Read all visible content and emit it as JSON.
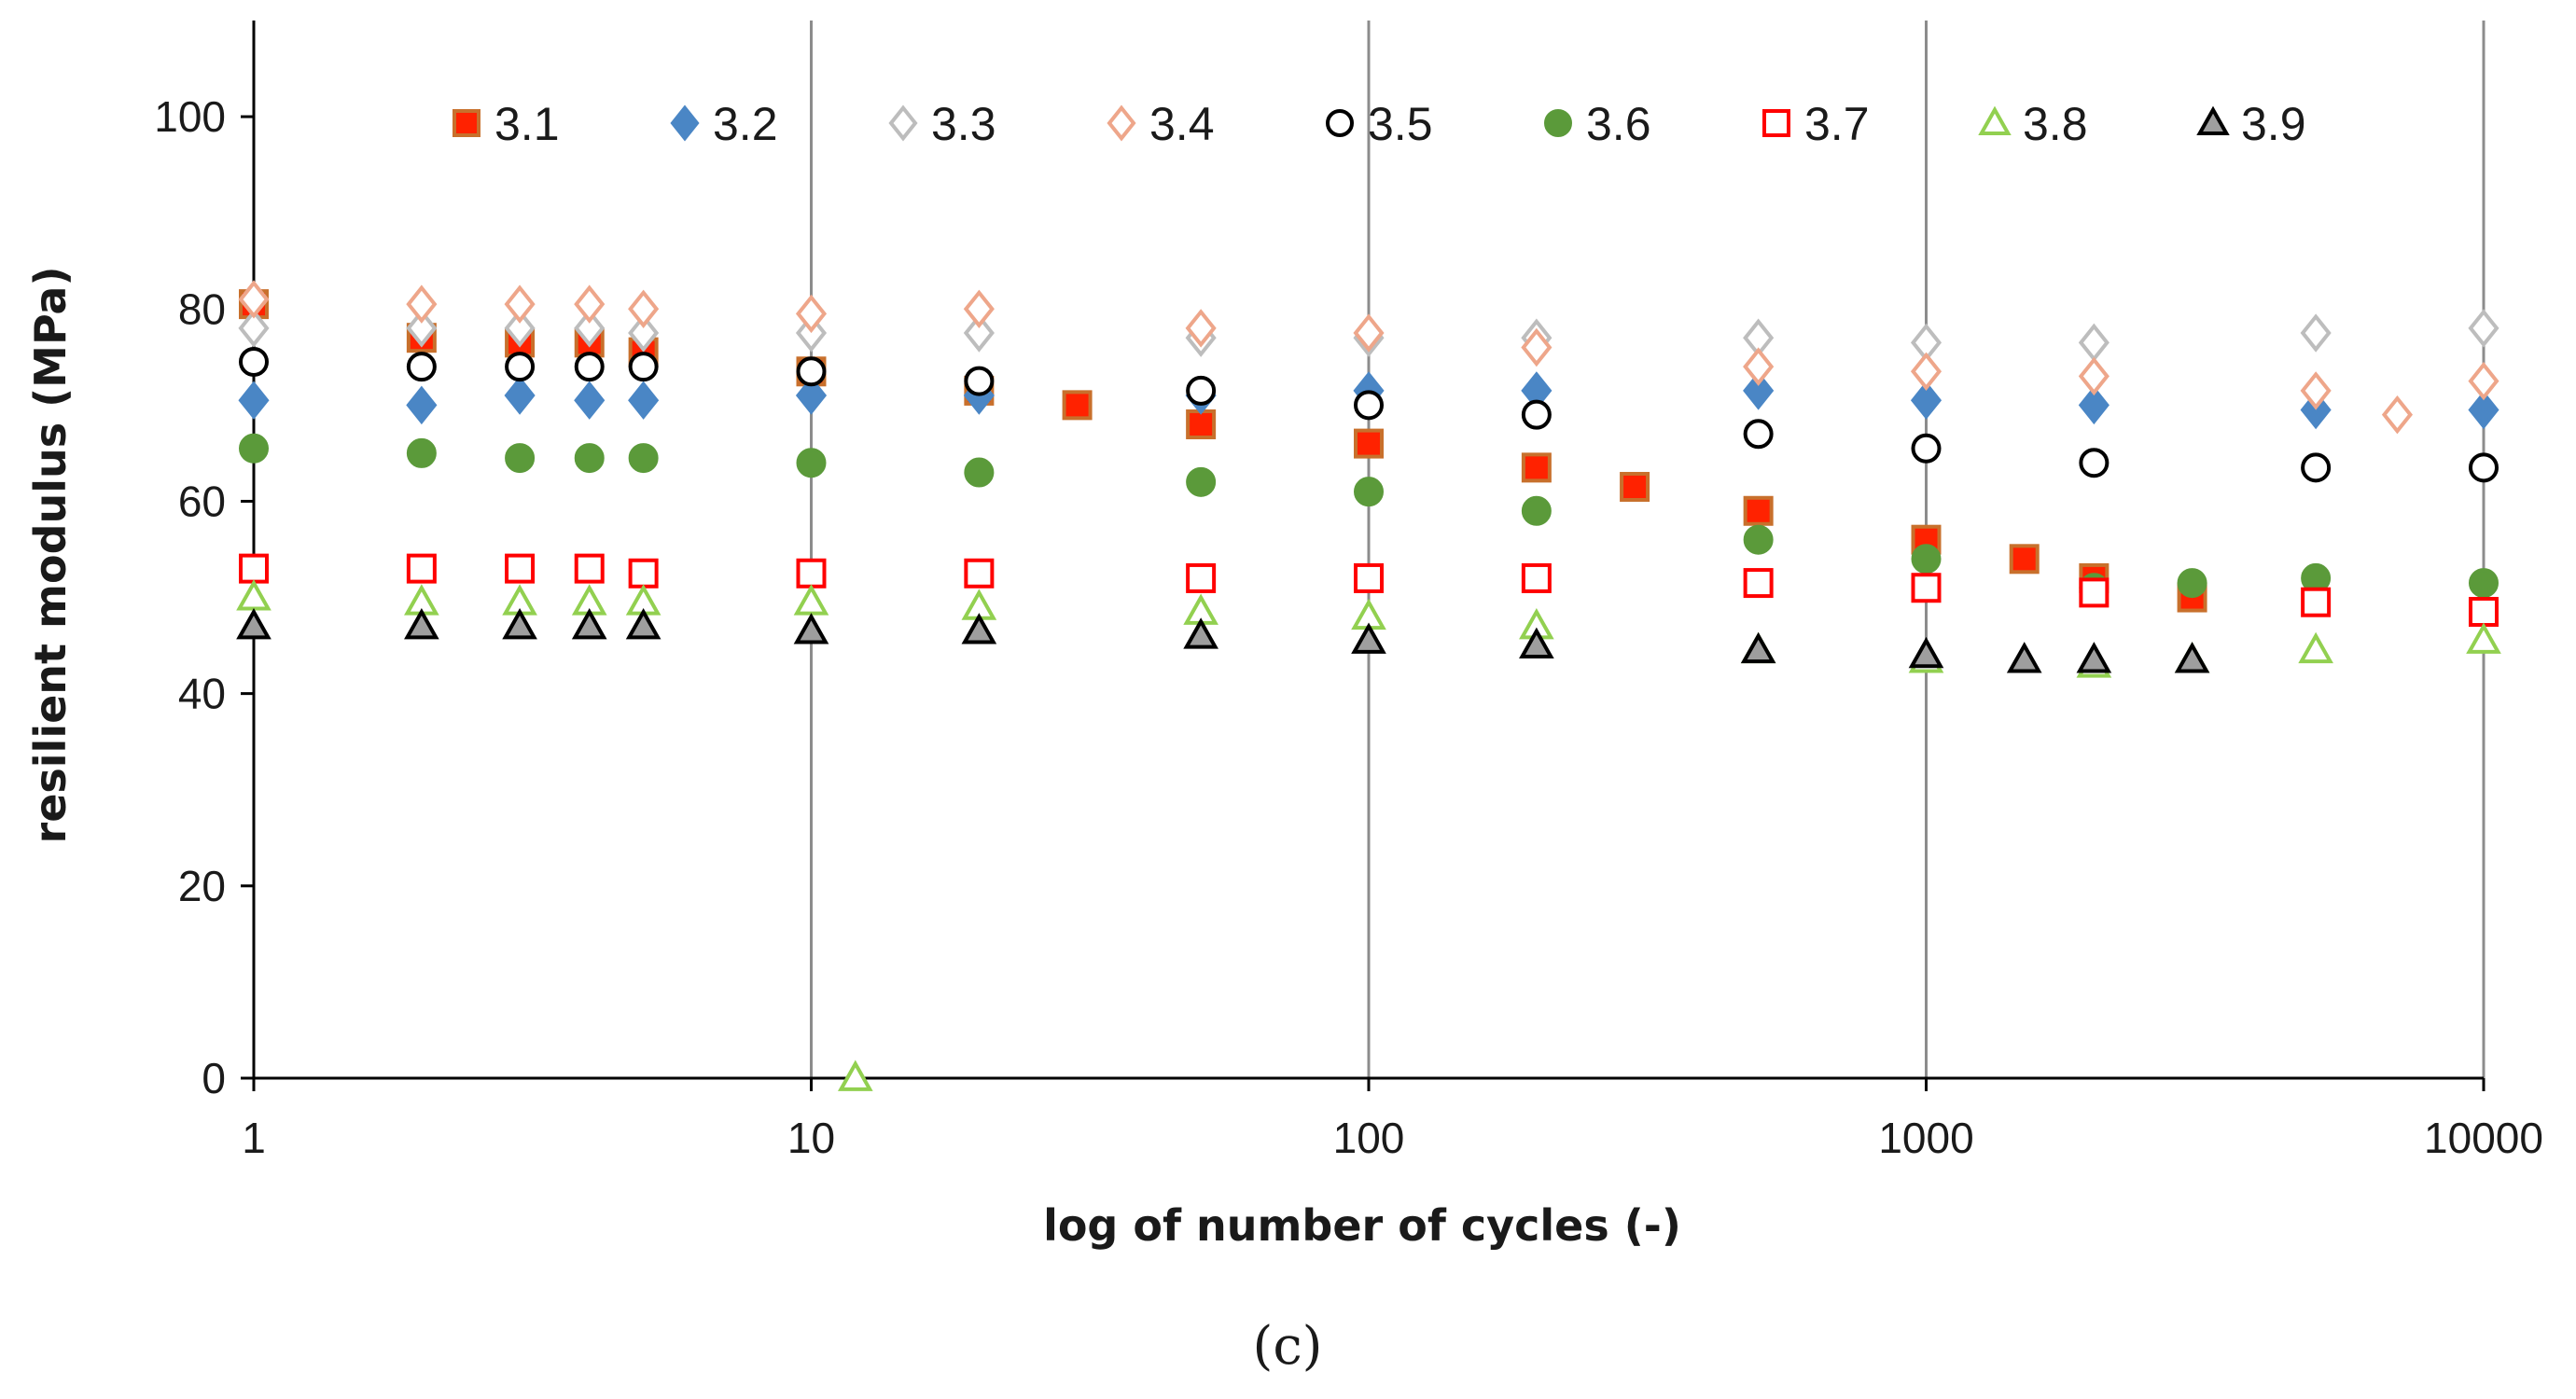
{
  "chart_data": {
    "type": "scatter",
    "title": "",
    "xlabel": "log of number of cycles (-)",
    "ylabel": "resilient modulus (MPa)",
    "xscale": "log",
    "xlim": [
      1,
      10000
    ],
    "ylim": [
      0,
      110
    ],
    "x_ticks": [
      1,
      10,
      100,
      1000,
      10000
    ],
    "x_tick_labels": [
      "1",
      "10",
      "100",
      "1000",
      "10000"
    ],
    "y_ticks": [
      0,
      20,
      40,
      60,
      80,
      100
    ],
    "y_tick_labels": [
      "0",
      "20",
      "40",
      "60",
      "80",
      "100"
    ],
    "grid": "vertical major lines",
    "legend_position": "top",
    "caption": "(c)",
    "series": [
      {
        "name": "3.1",
        "marker": "square",
        "fill": "#ff2200",
        "stroke": "#c8702c",
        "points": [
          [
            1,
            80.5
          ],
          [
            2,
            77
          ],
          [
            3,
            76.5
          ],
          [
            4,
            76.5
          ],
          [
            5,
            75.5
          ],
          [
            10,
            73.5
          ],
          [
            20,
            71.5
          ],
          [
            30,
            70
          ],
          [
            50,
            68
          ],
          [
            100,
            66
          ],
          [
            200,
            63.5
          ],
          [
            300,
            61.5
          ],
          [
            500,
            59
          ],
          [
            1000,
            56
          ],
          [
            1500,
            54
          ],
          [
            2000,
            52
          ],
          [
            3000,
            50
          ]
        ]
      },
      {
        "name": "3.2",
        "marker": "diamond",
        "fill": "#4a86c5",
        "stroke": "#4a86c5",
        "points": [
          [
            1,
            70.5
          ],
          [
            2,
            70
          ],
          [
            3,
            71
          ],
          [
            4,
            70.5
          ],
          [
            5,
            70.5
          ],
          [
            10,
            71
          ],
          [
            20,
            71
          ],
          [
            50,
            71
          ],
          [
            100,
            71.5
          ],
          [
            200,
            71.5
          ],
          [
            500,
            71.5
          ],
          [
            1000,
            70.5
          ],
          [
            2000,
            70
          ],
          [
            5000,
            69.5
          ],
          [
            10000,
            69.5
          ]
        ]
      },
      {
        "name": "3.3",
        "marker": "diamond",
        "fill": "#ffffff",
        "stroke": "#bdbdbd",
        "points": [
          [
            1,
            78
          ],
          [
            2,
            78
          ],
          [
            3,
            78
          ],
          [
            4,
            78
          ],
          [
            5,
            77.5
          ],
          [
            10,
            77.5
          ],
          [
            20,
            77.5
          ],
          [
            50,
            77
          ],
          [
            100,
            77
          ],
          [
            200,
            77
          ],
          [
            500,
            77
          ],
          [
            1000,
            76.5
          ],
          [
            2000,
            76.5
          ],
          [
            5000,
            77.5
          ],
          [
            10000,
            78
          ]
        ]
      },
      {
        "name": "3.4",
        "marker": "diamond",
        "fill": "#ffffff",
        "stroke": "#eea68a",
        "points": [
          [
            1,
            81
          ],
          [
            2,
            80.5
          ],
          [
            3,
            80.5
          ],
          [
            4,
            80.5
          ],
          [
            5,
            80
          ],
          [
            10,
            79.5
          ],
          [
            20,
            80
          ],
          [
            50,
            78
          ],
          [
            100,
            77.5
          ],
          [
            200,
            76
          ],
          [
            500,
            74
          ],
          [
            1000,
            73.5
          ],
          [
            2000,
            73
          ],
          [
            5000,
            71.5
          ],
          [
            7000,
            69
          ],
          [
            10000,
            72.5
          ]
        ]
      },
      {
        "name": "3.5",
        "marker": "circle",
        "fill": "#ffffff",
        "stroke": "#000000",
        "points": [
          [
            1,
            74.5
          ],
          [
            2,
            74
          ],
          [
            3,
            74
          ],
          [
            4,
            74
          ],
          [
            5,
            74
          ],
          [
            10,
            73.5
          ],
          [
            20,
            72.5
          ],
          [
            50,
            71.5
          ],
          [
            100,
            70
          ],
          [
            200,
            69
          ],
          [
            500,
            67
          ],
          [
            1000,
            65.5
          ],
          [
            2000,
            64
          ],
          [
            5000,
            63.5
          ],
          [
            10000,
            63.5
          ]
        ]
      },
      {
        "name": "3.6",
        "marker": "circle",
        "fill": "#5b9a3a",
        "stroke": "#5b9a3a",
        "points": [
          [
            1,
            65.5
          ],
          [
            2,
            65
          ],
          [
            3,
            64.5
          ],
          [
            4,
            64.5
          ],
          [
            5,
            64.5
          ],
          [
            10,
            64
          ],
          [
            20,
            63
          ],
          [
            50,
            62
          ],
          [
            100,
            61
          ],
          [
            200,
            59
          ],
          [
            500,
            56
          ],
          [
            1000,
            54
          ],
          [
            2000,
            51
          ],
          [
            3000,
            51.5
          ],
          [
            5000,
            52
          ],
          [
            10000,
            51.5
          ]
        ]
      },
      {
        "name": "3.7",
        "marker": "square",
        "fill": "#ffffff",
        "stroke": "#ff0000",
        "points": [
          [
            1,
            53
          ],
          [
            2,
            53
          ],
          [
            3,
            53
          ],
          [
            4,
            53
          ],
          [
            5,
            52.5
          ],
          [
            10,
            52.5
          ],
          [
            20,
            52.5
          ],
          [
            50,
            52
          ],
          [
            100,
            52
          ],
          [
            200,
            52
          ],
          [
            500,
            51.5
          ],
          [
            1000,
            51
          ],
          [
            2000,
            50.5
          ],
          [
            5000,
            49.5
          ],
          [
            10000,
            48.5
          ]
        ]
      },
      {
        "name": "3.8",
        "marker": "triangle",
        "fill": "#ffffff",
        "stroke": "#92d050",
        "points": [
          [
            1,
            50
          ],
          [
            2,
            49.5
          ],
          [
            3,
            49.5
          ],
          [
            4,
            49.5
          ],
          [
            5,
            49.5
          ],
          [
            10,
            49.5
          ],
          [
            12,
            0
          ],
          [
            20,
            49
          ],
          [
            50,
            48.5
          ],
          [
            100,
            48
          ],
          [
            200,
            47
          ],
          [
            500,
            44.5
          ],
          [
            1000,
            43.5
          ],
          [
            2000,
            43
          ],
          [
            3000,
            43.5
          ],
          [
            5000,
            44.5
          ],
          [
            10000,
            45.5
          ]
        ]
      },
      {
        "name": "3.9",
        "marker": "triangle",
        "fill": "#9e9e9e",
        "stroke": "#000000",
        "points": [
          [
            1,
            47
          ],
          [
            2,
            47
          ],
          [
            3,
            47
          ],
          [
            4,
            47
          ],
          [
            5,
            47
          ],
          [
            10,
            46.5
          ],
          [
            20,
            46.5
          ],
          [
            50,
            46
          ],
          [
            100,
            45.5
          ],
          [
            200,
            45
          ],
          [
            500,
            44.5
          ],
          [
            1000,
            44
          ],
          [
            1500,
            43.5
          ],
          [
            2000,
            43.5
          ],
          [
            3000,
            43.5
          ]
        ]
      }
    ]
  }
}
